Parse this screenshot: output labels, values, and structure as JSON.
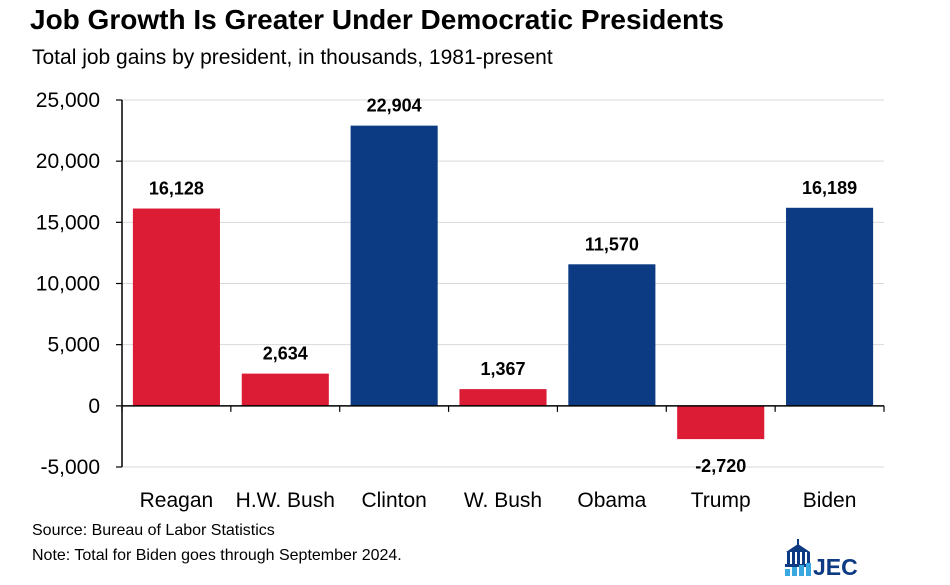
{
  "title": "Job Growth Is Greater Under Democratic Presidents",
  "subtitle": "Total job gains by president, in thousands, 1981-present",
  "source": "Source: Bureau of Labor Statistics",
  "note": "Note: Total for Biden goes through September 2024.",
  "logo": {
    "text": "JEC"
  },
  "colors": {
    "republican": "#dc1c35",
    "democratic": "#0c3a83",
    "grid": "#d9d9d9",
    "axis": "#000000"
  },
  "chart_data": {
    "type": "bar",
    "title": "Job Growth Is Greater Under Democratic Presidents",
    "subtitle": "Total job gains by president, in thousands, 1981-present",
    "xlabel": "",
    "ylabel": "",
    "ylim": [
      -5000,
      25000
    ],
    "yticks": [
      -5000,
      0,
      5000,
      10000,
      15000,
      20000,
      25000
    ],
    "ytick_labels": [
      "-5,000",
      "0",
      "5,000",
      "10,000",
      "15,000",
      "20,000",
      "25,000"
    ],
    "grid": true,
    "categories": [
      "Reagan",
      "H.W. Bush",
      "Clinton",
      "W. Bush",
      "Obama",
      "Trump",
      "Biden"
    ],
    "values": [
      16128,
      2634,
      22904,
      1367,
      11570,
      -2720,
      16189
    ],
    "value_labels": [
      "16,128",
      "2,634",
      "22,904",
      "1,367",
      "11,570",
      "-2,720",
      "16,189"
    ],
    "bar_colors": [
      "#dc1c35",
      "#dc1c35",
      "#0c3a83",
      "#dc1c35",
      "#0c3a83",
      "#dc1c35",
      "#0c3a83"
    ]
  }
}
